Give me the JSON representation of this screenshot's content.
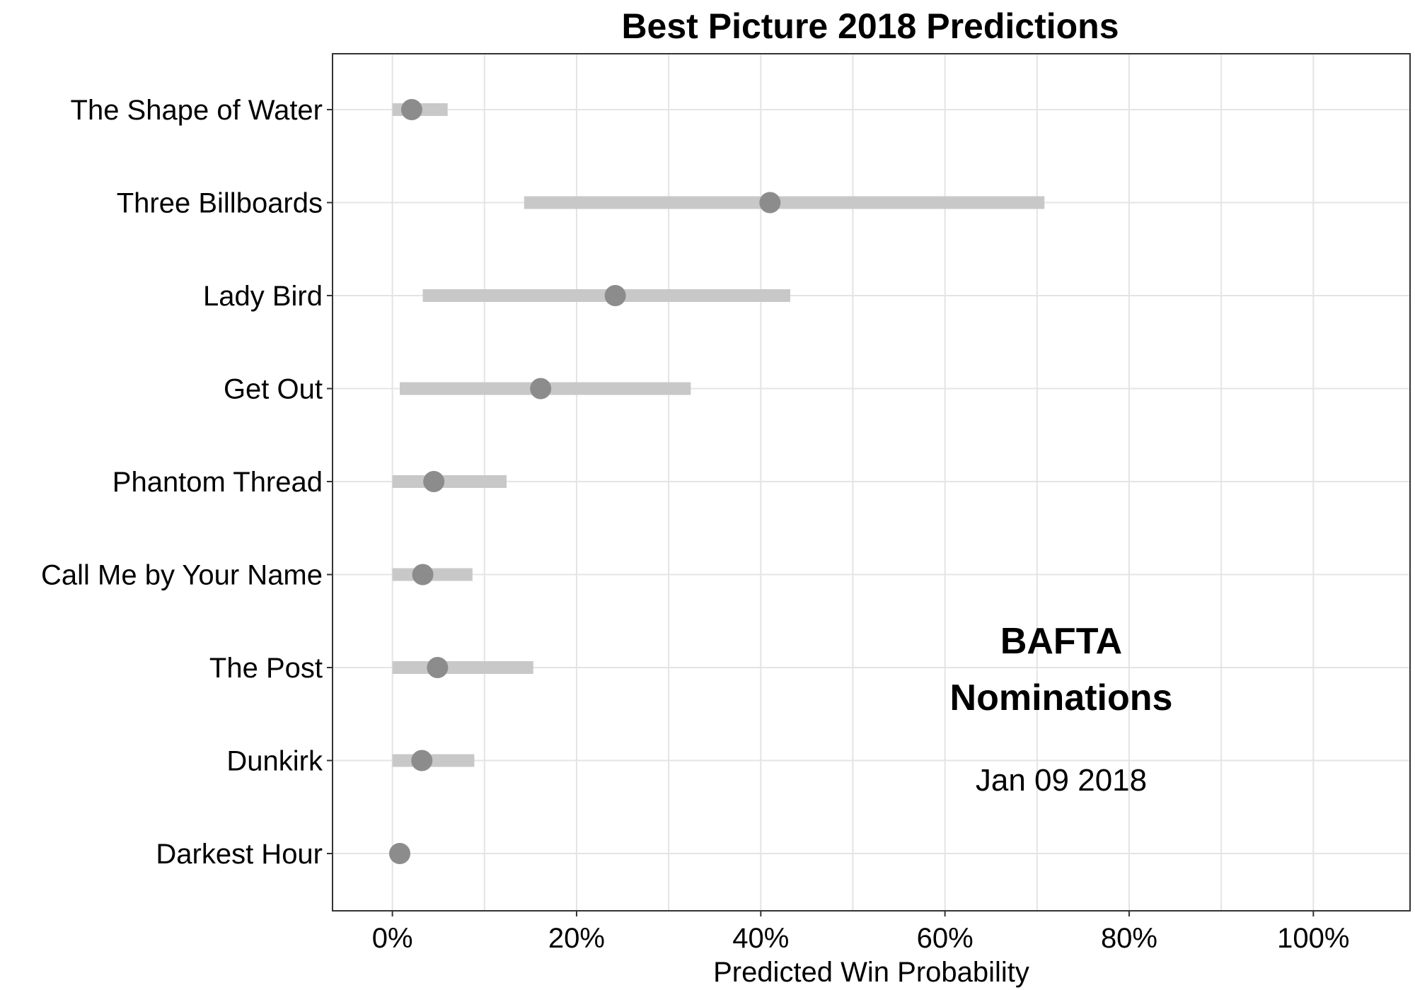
{
  "chart_data": {
    "type": "dot-range",
    "title": "Best Picture 2018 Predictions",
    "xlabel": "Predicted Win Probability",
    "ylabel": "",
    "xlim": [
      -0.065,
      1.105
    ],
    "x_ticks": [
      0,
      0.2,
      0.4,
      0.6,
      0.8,
      1.0
    ],
    "x_tick_labels": [
      "0%",
      "20%",
      "40%",
      "60%",
      "80%",
      "100%"
    ],
    "grid": true,
    "categories": [
      "The Shape of Water",
      "Three Billboards",
      "Lady Bird",
      "Get Out",
      "Phantom Thread",
      "Call Me by Your Name",
      "The Post",
      "Dunkirk",
      "Darkest Hour"
    ],
    "series": [
      {
        "values": [
          0.021,
          0.41,
          0.242,
          0.161,
          0.045,
          0.033,
          0.049,
          0.032,
          0.008
        ],
        "lower": [
          0.0,
          0.143,
          0.033,
          0.008,
          0.0,
          0.0,
          0.0,
          0.0,
          0.0
        ],
        "upper": [
          0.06,
          0.708,
          0.432,
          0.324,
          0.124,
          0.087,
          0.153,
          0.089,
          0.016
        ]
      }
    ],
    "annotation": {
      "line1": "BAFTA",
      "line2": "Nominations",
      "line3": "Jan 09 2018"
    },
    "colors": {
      "point": "#8c8c8c",
      "range": "#c8c8c8",
      "grid": "#e4e4e4",
      "frame": "#333333"
    }
  }
}
